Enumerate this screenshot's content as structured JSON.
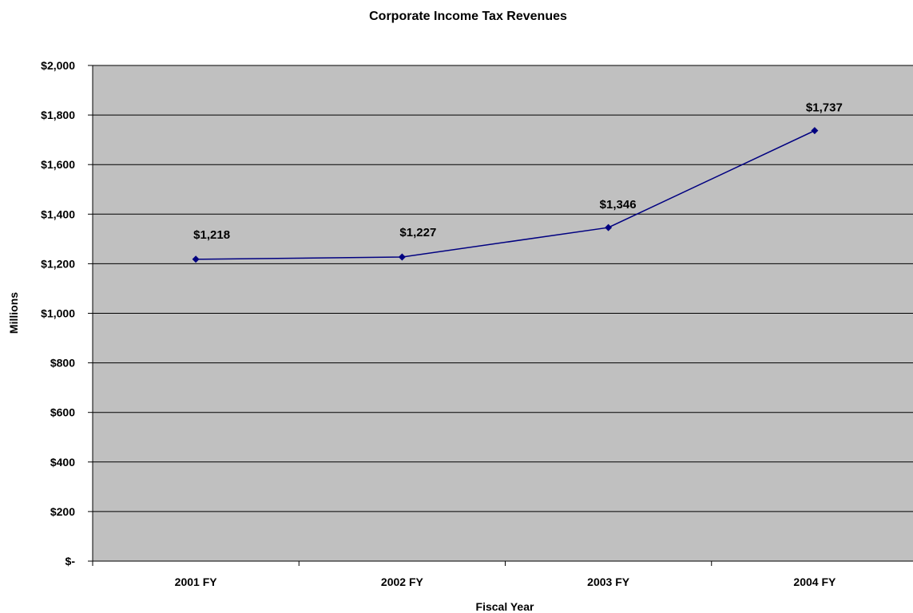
{
  "chart_data": {
    "type": "line",
    "title": "Corporate Income Tax Revenues",
    "xlabel": "Fiscal Year",
    "ylabel": "Millions",
    "categories": [
      "2001 FY",
      "2002 FY",
      "2003 FY",
      "2004 FY"
    ],
    "series": [
      {
        "values": [
          1218,
          1227,
          1346,
          1737
        ],
        "data_labels": [
          "$1,218",
          "$1,227",
          "$1,346",
          "$1,737"
        ]
      }
    ],
    "ylim": [
      0,
      2000
    ],
    "y_ticks": [
      0,
      200,
      400,
      600,
      800,
      1000,
      1200,
      1400,
      1600,
      1800,
      2000
    ],
    "y_tick_labels": [
      "$-",
      "$200",
      "$400",
      "$600",
      "$800",
      "$1,000",
      "$1,200",
      "$1,400",
      "$1,600",
      "$1,800",
      "$2,000"
    ],
    "grid": true,
    "legend": "none",
    "colors": {
      "plot_background": "#c0c0c0",
      "series_line": "#000080",
      "gridline": "#000000"
    }
  }
}
